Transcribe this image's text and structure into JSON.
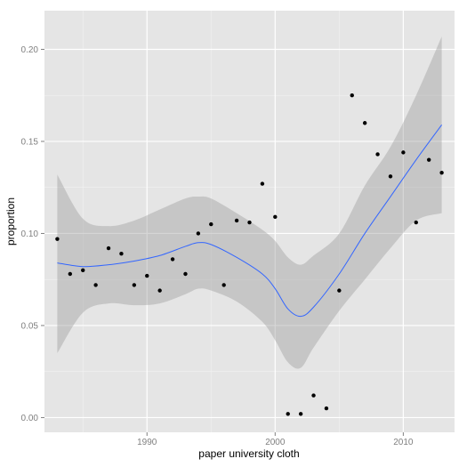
{
  "chart_data": {
    "type": "scatter",
    "title": "",
    "xlabel": "paper university cloth",
    "ylabel": "proportion",
    "xlim": [
      1982,
      2014
    ],
    "ylim": [
      -0.008,
      0.221
    ],
    "x_ticks": [
      1990,
      2000,
      2010
    ],
    "x_tick_labels": [
      "1990",
      "2000",
      "2010"
    ],
    "y_ticks": [
      0.0,
      0.05,
      0.1,
      0.15,
      0.2
    ],
    "y_tick_labels": [
      "0.00",
      "0.05",
      "0.10",
      "0.15",
      "0.20"
    ],
    "grid": true,
    "legend": "none",
    "points": {
      "x": [
        1983,
        1984,
        1985,
        1986,
        1987,
        1988,
        1989,
        1990,
        1991,
        1992,
        1993,
        1994,
        1995,
        1996,
        1997,
        1998,
        1999,
        2000,
        2001,
        2002,
        2003,
        2004,
        2005,
        2006,
        2007,
        2008,
        2009,
        2010,
        2011,
        2012,
        2013
      ],
      "y": [
        0.097,
        0.078,
        0.08,
        0.072,
        0.092,
        0.089,
        0.072,
        0.077,
        0.069,
        0.086,
        0.078,
        0.1,
        0.105,
        0.072,
        0.107,
        0.106,
        0.127,
        0.109,
        0.002,
        0.002,
        0.012,
        0.005,
        0.069,
        0.175,
        0.16,
        0.143,
        0.131,
        0.144,
        0.106,
        0.14,
        0.133
      ]
    },
    "smooth": {
      "x": [
        1983,
        1985,
        1987,
        1989,
        1991,
        1993,
        1994,
        1995,
        1997,
        1999,
        2000,
        2001,
        2002,
        2003,
        2005,
        2007,
        2009,
        2011,
        2013
      ],
      "y": [
        0.084,
        0.082,
        0.083,
        0.085,
        0.088,
        0.093,
        0.095,
        0.094,
        0.087,
        0.078,
        0.07,
        0.059,
        0.055,
        0.06,
        0.078,
        0.1,
        0.12,
        0.14,
        0.159
      ],
      "lower": [
        0.035,
        0.057,
        0.062,
        0.061,
        0.062,
        0.067,
        0.07,
        0.069,
        0.063,
        0.052,
        0.042,
        0.03,
        0.027,
        0.038,
        0.058,
        0.075,
        0.092,
        0.107,
        0.111
      ],
      "upper": [
        0.132,
        0.108,
        0.104,
        0.107,
        0.113,
        0.119,
        0.12,
        0.119,
        0.111,
        0.102,
        0.096,
        0.087,
        0.083,
        0.088,
        0.1,
        0.126,
        0.147,
        0.175,
        0.207
      ]
    },
    "colors": {
      "panel": "#e5e5e5",
      "grid_major": "#ffffff",
      "grid_minor": "#f2f2f2",
      "point": "#000000",
      "line": "#3366ff",
      "ribbon": "#999999"
    }
  }
}
